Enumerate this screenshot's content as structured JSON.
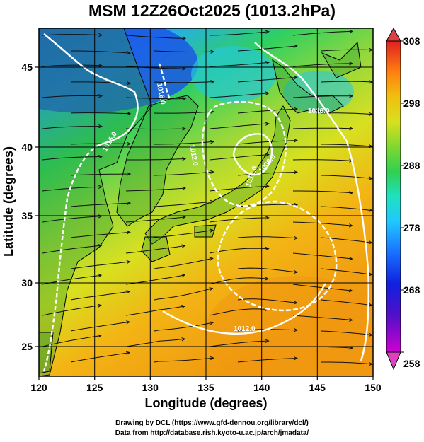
{
  "title": "MSM 12Z26Oct2025 (1013.2hPa)",
  "map": {
    "lon_range": [
      120,
      150
    ],
    "lat_range": [
      22.8,
      48
    ],
    "x_ticks": [
      "120",
      "125",
      "130",
      "135",
      "140",
      "145",
      "150"
    ],
    "y_ticks": [
      "25",
      "30",
      "35",
      "40",
      "45"
    ],
    "xlabel": "Longitude (degrees)",
    "ylabel": "Latitude  (degrees)",
    "contour_labels": [
      "1016.0",
      "1016.0",
      "1012.0",
      "1016.0",
      "1008.0",
      "1012.0",
      "1016.0"
    ]
  },
  "colorbar": {
    "ticks": [
      "308",
      "298",
      "288",
      "278",
      "268",
      "258"
    ],
    "min": 258,
    "max": 308,
    "colors": [
      "#d000d0",
      "#6010d0",
      "#1020e0",
      "#1a70ff",
      "#20c8ff",
      "#20e0c0",
      "#30d050",
      "#70d030",
      "#c8e020",
      "#f0d010",
      "#ffa000",
      "#ff5010",
      "#e02020"
    ]
  },
  "credits": {
    "line1": "Drawing by DCL (https://www.gfd-dennou.org/library/dcl/)",
    "line2": "Data from http://database.rish.kyoto-u.ac.jp/arch/jmadata/"
  }
}
